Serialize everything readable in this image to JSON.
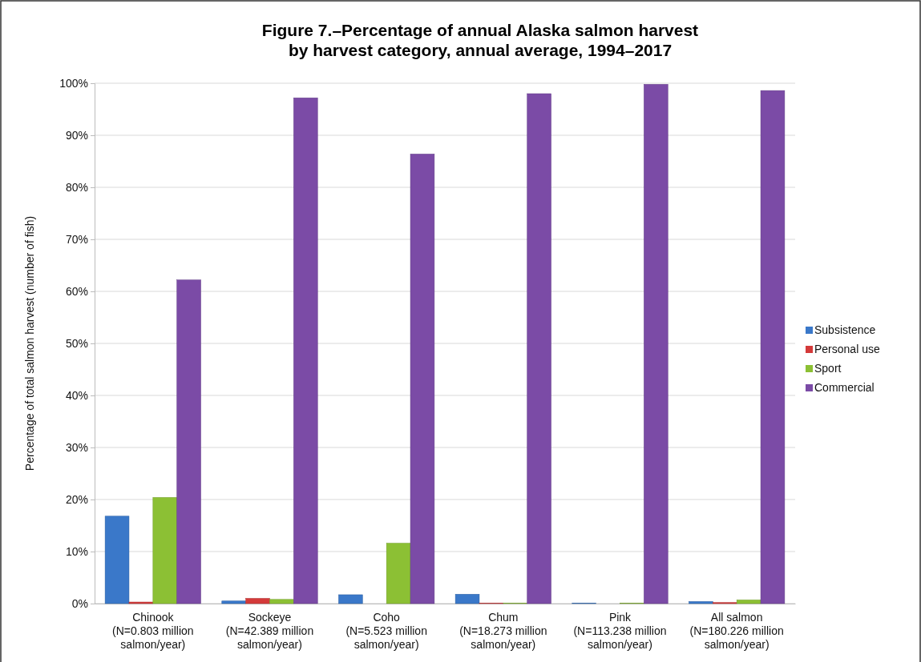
{
  "chart_data": {
    "type": "bar",
    "title": "Figure 7.–Percentage of annual Alaska salmon harvest\nby harvest category, annual average, 1994–2017",
    "ylabel": "Percentage of total salmon harvest (number of fish)",
    "categories": [
      "Chinook\n(N=0.803 million\nsalmon/year)",
      "Sockeye\n(N=42.389 million\nsalmon/year)",
      "Coho\n(N=5.523 million\nsalmon/year)",
      "Chum\n(N=18.273 million\nsalmon/year)",
      "Pink\n(N=113.238 million\nsalmon/year)",
      "All salmon\n(N=180.226 million\nsalmon/year)"
    ],
    "series": [
      {
        "name": "Subsistence",
        "color": "#3a78c9",
        "values": [
          16.8,
          0.5,
          1.7,
          1.8,
          0.1,
          0.4
        ]
      },
      {
        "name": "Personal use",
        "color": "#d43a3a",
        "values": [
          0.3,
          1.0,
          0,
          0.1,
          0,
          0.2
        ]
      },
      {
        "name": "Sport",
        "color": "#8cc034",
        "values": [
          20.4,
          0.8,
          11.6,
          0.1,
          0.1,
          0.7
        ]
      },
      {
        "name": "Commercial",
        "color": "#7b4ba6",
        "values": [
          62.2,
          97.2,
          86.4,
          98.0,
          99.8,
          98.6
        ]
      }
    ],
    "ylim": [
      0,
      100
    ],
    "yticks": [
      {
        "value": 0,
        "label": "0%"
      },
      {
        "value": 10,
        "label": "10%"
      },
      {
        "value": 20,
        "label": "20%"
      },
      {
        "value": 30,
        "label": "30%"
      },
      {
        "value": 40,
        "label": "40%"
      },
      {
        "value": 50,
        "label": "50%"
      },
      {
        "value": 60,
        "label": "60%"
      },
      {
        "value": 70,
        "label": "70%"
      },
      {
        "value": 80,
        "label": "80%"
      },
      {
        "value": 90,
        "label": "90%"
      },
      {
        "value": 100,
        "label": "100%"
      }
    ],
    "grid": "y",
    "legend": "right"
  }
}
